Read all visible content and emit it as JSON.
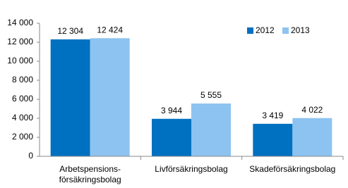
{
  "chart_data": {
    "type": "bar",
    "categories": [
      "Arbetspensions-\nförsäkringsbolag",
      "Livförsäkringsbolag",
      "Skadeförsäkringsbolag"
    ],
    "series": [
      {
        "name": "2012",
        "color": "#0070c0",
        "values": [
          12304,
          3944,
          3419
        ],
        "value_labels": [
          "12 304",
          "3 944",
          "3 419"
        ]
      },
      {
        "name": "2013",
        "color": "#8dc3f0",
        "values": [
          12424,
          5555,
          4022
        ],
        "value_labels": [
          "12 424",
          "5 555",
          "4 022"
        ]
      }
    ],
    "ylim": [
      0,
      14000
    ],
    "yticks": [
      0,
      {
        "value": 2000,
        "label": "2 000"
      },
      {
        "value": 4000,
        "label": "4 000"
      },
      {
        "value": 6000,
        "label": "6 000"
      },
      {
        "value": 8000,
        "label": "8 000"
      },
      {
        "value": 10000,
        "label": "10 000"
      },
      {
        "value": 12000,
        "label": "12 000"
      },
      {
        "value": 14000,
        "label": "14 000"
      }
    ],
    "legend": "top-right"
  }
}
